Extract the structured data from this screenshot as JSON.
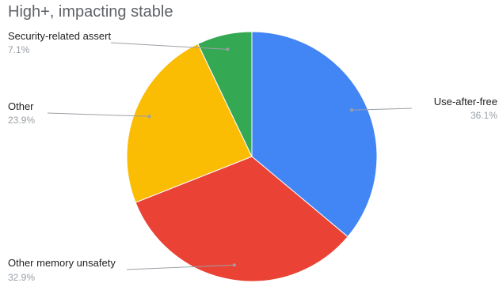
{
  "chart_data": {
    "type": "pie",
    "title": "High+, impacting stable",
    "start_angle_deg": 0,
    "direction": "clockwise",
    "slices": [
      {
        "label": "Use-after-free",
        "value": 36.1,
        "value_label": "36.1%",
        "color": "#4285f4"
      },
      {
        "label": "Other memory unsafety",
        "value": 32.9,
        "value_label": "32.9%",
        "color": "#ea4335"
      },
      {
        "label": "Other",
        "value": 23.9,
        "value_label": "23.9%",
        "color": "#fbbc04"
      },
      {
        "label": "Security-related assert",
        "value": 7.1,
        "value_label": "7.1%",
        "color": "#34a853"
      }
    ]
  },
  "colors": {
    "title": "#5f6368",
    "label": "#222222",
    "value_label": "#9aa0a6",
    "leader_line": "#9aa0a6"
  }
}
